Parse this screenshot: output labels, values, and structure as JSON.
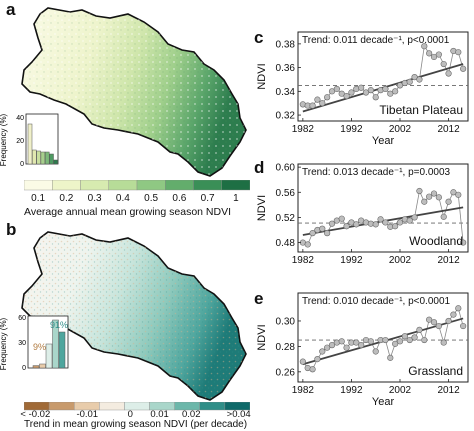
{
  "panels": {
    "a": "a",
    "b": "b",
    "c": "c",
    "d": "d",
    "e": "e"
  },
  "colors": {
    "ndvi_ramp": [
      "#fbfbe6",
      "#eef5c9",
      "#d7ebb0",
      "#b7dc98",
      "#8fc883",
      "#63ad6c",
      "#3a8f57",
      "#1e6f44"
    ],
    "trend_ramp": [
      "#a06a37",
      "#c89a6c",
      "#e8ccab",
      "#f4ece0",
      "#ddeee8",
      "#a9d6ca",
      "#6cb7aa",
      "#2f8e88",
      "#0f6a6a"
    ],
    "hist_a": [
      "#f0f0c9",
      "#e1e8b0",
      "#c9df9f",
      "#a7cf8d",
      "#7db97a",
      "#4e9a62",
      "#2e7b4e"
    ],
    "trend_line": "#444444",
    "mean_line": "#666666",
    "points": "#bdbdbd"
  },
  "map_a": {
    "colorbar_ticks": [
      "0.1",
      "0.2",
      "0.3",
      "0.4",
      "0.5",
      "0.6",
      "0.7",
      "1"
    ],
    "colorbar_title": "Average annual mean growing season NDVI",
    "inset_ylabel": "Frequency (%)",
    "inset_yticks": [
      "0",
      "20",
      "40"
    ],
    "inset_values": [
      40,
      14,
      13,
      12,
      12,
      10,
      4
    ]
  },
  "map_b": {
    "colorbar_ticks": [
      "< -0.02",
      "-0.01",
      "0",
      "0.01",
      "0.02",
      ">0.04"
    ],
    "colorbar_title": "Trend in mean growing season NDVI (per decade)",
    "inset_ylabel": "Frequency (%)",
    "inset_yticks": [
      "0",
      "30",
      "60"
    ],
    "inset_values": [
      3,
      5,
      30,
      60,
      45
    ],
    "pct_neg": "9%",
    "pct_pos": "91%"
  },
  "chart_data": [
    {
      "type": "line",
      "panel": "c",
      "region": "Tibetan Plateau",
      "annotation": "Trend: 0.011 decade⁻¹, p<0.0001",
      "ylabel": "NDVI",
      "xlabel": "Year",
      "xticks": [
        "1982",
        "1992",
        "2002",
        "2012"
      ],
      "yticks": [
        "0.32",
        "0.34",
        "0.36",
        "0.38"
      ],
      "xlim": [
        1981,
        2016
      ],
      "ylim": [
        0.315,
        0.39
      ],
      "mean": 0.345,
      "trend": [
        [
          1982,
          0.323
        ],
        [
          2015,
          0.363
        ]
      ],
      "x": [
        1982,
        1983,
        1984,
        1985,
        1986,
        1987,
        1988,
        1989,
        1990,
        1991,
        1992,
        1993,
        1994,
        1995,
        1996,
        1997,
        1998,
        1999,
        2000,
        2001,
        2002,
        2003,
        2004,
        2005,
        2006,
        2007,
        2008,
        2009,
        2010,
        2011,
        2012,
        2013,
        2014,
        2015
      ],
      "y": [
        0.329,
        0.328,
        0.328,
        0.333,
        0.33,
        0.335,
        0.34,
        0.342,
        0.338,
        0.336,
        0.339,
        0.342,
        0.343,
        0.339,
        0.341,
        0.335,
        0.341,
        0.342,
        0.338,
        0.34,
        0.345,
        0.347,
        0.348,
        0.352,
        0.35,
        0.378,
        0.372,
        0.369,
        0.371,
        0.363,
        0.355,
        0.374,
        0.373,
        0.359
      ]
    },
    {
      "type": "line",
      "panel": "d",
      "region": "Woodland",
      "annotation": "Trend: 0.013 decade⁻¹, p=0.0003",
      "ylabel": "NDVI",
      "xlabel": "",
      "xticks": [
        "1982",
        "1992",
        "2002",
        "2012"
      ],
      "yticks": [
        "0.48",
        "0.52",
        "0.56",
        "0.60"
      ],
      "xlim": [
        1981,
        2016
      ],
      "ylim": [
        0.465,
        0.605
      ],
      "mean": 0.511,
      "trend": [
        [
          1982,
          0.492
        ],
        [
          2015,
          0.536
        ]
      ],
      "x": [
        1982,
        1983,
        1984,
        1985,
        1986,
        1987,
        1988,
        1989,
        1990,
        1991,
        1992,
        1993,
        1994,
        1995,
        1996,
        1997,
        1998,
        1999,
        2000,
        2001,
        2002,
        2003,
        2004,
        2005,
        2006,
        2007,
        2008,
        2009,
        2010,
        2011,
        2012,
        2013,
        2014,
        2015
      ],
      "y": [
        0.48,
        0.477,
        0.495,
        0.5,
        0.502,
        0.495,
        0.51,
        0.515,
        0.518,
        0.506,
        0.512,
        0.509,
        0.515,
        0.512,
        0.51,
        0.509,
        0.517,
        0.512,
        0.505,
        0.506,
        0.512,
        0.517,
        0.515,
        0.52,
        0.562,
        0.545,
        0.553,
        0.558,
        0.552,
        0.521,
        0.545,
        0.56,
        0.556,
        0.48
      ]
    },
    {
      "type": "line",
      "panel": "e",
      "region": "Grassland",
      "annotation": "Trend: 0.010 decade⁻¹, p<0.0001",
      "ylabel": "NDVI",
      "xlabel": "Year",
      "xticks": [
        "1982",
        "1992",
        "2002",
        "2012"
      ],
      "yticks": [
        "0.26",
        "0.28",
        "0.30"
      ],
      "xlim": [
        1981,
        2016
      ],
      "ylim": [
        0.252,
        0.322
      ],
      "mean": 0.285,
      "trend": [
        [
          1982,
          0.266
        ],
        [
          2015,
          0.302
        ]
      ],
      "x": [
        1982,
        1983,
        1984,
        1985,
        1986,
        1987,
        1988,
        1989,
        1990,
        1991,
        1992,
        1993,
        1994,
        1995,
        1996,
        1997,
        1998,
        1999,
        2000,
        2001,
        2002,
        2003,
        2004,
        2005,
        2006,
        2007,
        2008,
        2009,
        2010,
        2011,
        2012,
        2013,
        2014,
        2015
      ],
      "y": [
        0.268,
        0.263,
        0.262,
        0.27,
        0.276,
        0.279,
        0.281,
        0.283,
        0.284,
        0.279,
        0.283,
        0.283,
        0.281,
        0.285,
        0.284,
        0.276,
        0.285,
        0.285,
        0.271,
        0.282,
        0.284,
        0.288,
        0.285,
        0.287,
        0.293,
        0.285,
        0.301,
        0.299,
        0.296,
        0.283,
        0.3,
        0.305,
        0.31,
        0.296
      ]
    }
  ]
}
